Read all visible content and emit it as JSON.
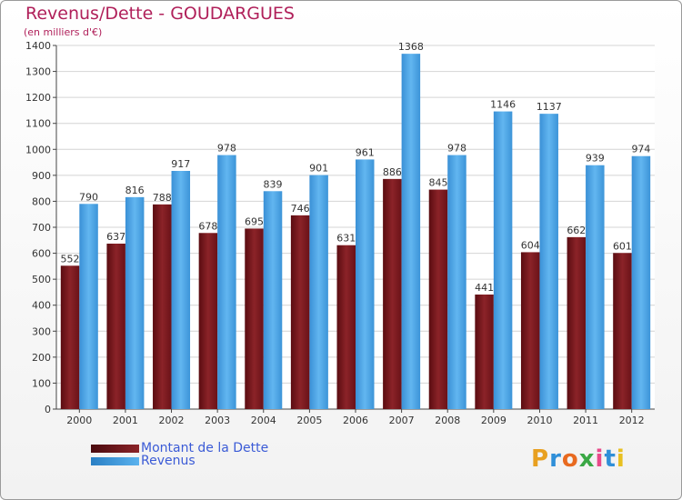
{
  "title": "Revenus/Dette - GOUDARGUES",
  "subtitle": "(en milliers d'€)",
  "logo_text": "Proxiti",
  "chart_data": {
    "type": "bar",
    "categories": [
      "2000",
      "2001",
      "2002",
      "2003",
      "2004",
      "2005",
      "2006",
      "2007",
      "2008",
      "2009",
      "2010",
      "2011",
      "2012"
    ],
    "series": [
      {
        "name": "Montant de la Dette",
        "color": "#7a1a1f",
        "values": [
          552,
          637,
          788,
          678,
          695,
          746,
          631,
          886,
          845,
          441,
          604,
          662,
          601
        ]
      },
      {
        "name": "Revenus",
        "color": "#4aa3e3",
        "values": [
          790,
          816,
          917,
          978,
          839,
          901,
          961,
          1368,
          978,
          1146,
          1137,
          939,
          974
        ]
      }
    ],
    "ylim": [
      0,
      1400
    ],
    "yticks": [
      0,
      100,
      200,
      300,
      400,
      500,
      600,
      700,
      800,
      900,
      1000,
      1100,
      1200,
      1300,
      1400
    ],
    "grid": true,
    "legend": "bottom-left"
  }
}
